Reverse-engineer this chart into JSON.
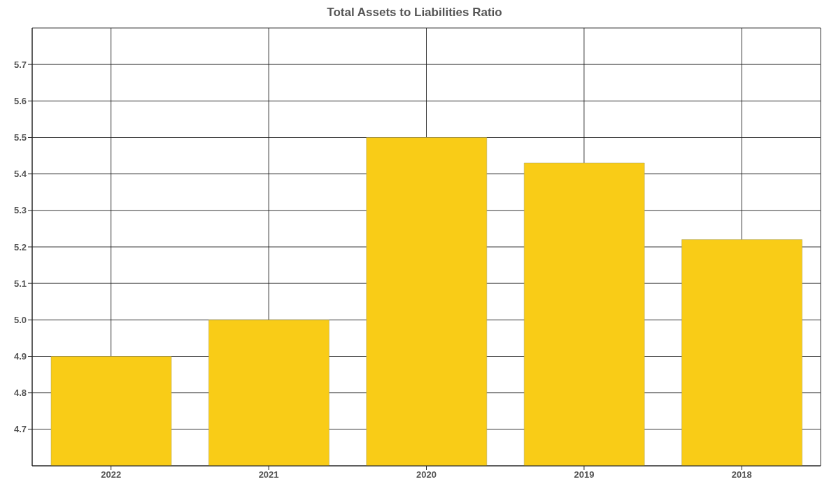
{
  "chart_data": {
    "type": "bar",
    "title": "Total Assets to Liabilities Ratio",
    "categories": [
      "2022",
      "2021",
      "2020",
      "2019",
      "2018"
    ],
    "values": [
      4.9,
      5.0,
      5.5,
      5.43,
      5.22
    ],
    "color": "#f9cc17",
    "ylim": [
      4.6,
      5.8
    ],
    "yticks": [
      4.7,
      4.8,
      4.9,
      {
        "value": 5.0,
        "label": "5.0"
      },
      5.1,
      5.2,
      5.3,
      5.4,
      5.5,
      5.6,
      5.7
    ],
    "grid": true
  }
}
